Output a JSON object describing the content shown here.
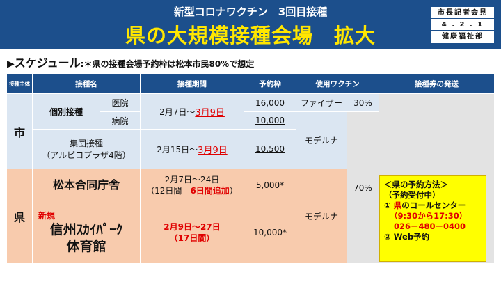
{
  "header": {
    "subtitle": "新型コロナワクチン　3回目接種",
    "title": "県の大規模接種会場　拡大",
    "press": [
      "市長記者会見",
      "4 . 2 . 1",
      "健康福祉部"
    ]
  },
  "schedule": {
    "marker": "▶",
    "heading": "スケジュール",
    "note": ":＊県の接種会場予約枠は松本市民80%で想定"
  },
  "table": {
    "headers": {
      "subject": "接種主体",
      "name": "接種名",
      "period": "接種期間",
      "slots": "予約枠",
      "vaccine": "使用ワクチン",
      "tickets": "接種券の発送"
    },
    "city": {
      "label": "市",
      "individual": "個別接種",
      "clinic": "医院",
      "hospital": "病院",
      "individual_period_a": "2月7日～",
      "individual_period_b": "3月9日",
      "clinic_slots": "16,000",
      "hospital_slots": "10,000",
      "pfizer": "ファイザー",
      "pfizer_pct": "30%",
      "group_1": "集団接種",
      "group_2": "（アルピコプラザ4階）",
      "group_period_a": "2月15日～",
      "group_period_b": "3月9日",
      "group_slots": "10,500",
      "moderna": "モデルナ"
    },
    "pref": {
      "label": "県",
      "site1_name": "松本合同庁舎",
      "site1_period_1": "2月7日～24日",
      "site1_period_2a": "（12日間",
      "site1_period_2b": "6日間追加",
      "site1_period_2c": "）",
      "site1_slots": "5,000*",
      "moderna_pct": "70%",
      "site2_new": "新規",
      "site2_name_1": "信州ｽｶｲﾊﾟｰｸ",
      "site2_name_2": "体育館",
      "site2_period_1": "2月9日～27日",
      "site2_period_2": "（17日間）",
      "site2_slots": "10,000*",
      "moderna": "モデルナ"
    },
    "reservation": {
      "line1": "＜県の予約方法＞",
      "line2": "（予約受付中）",
      "line3a": "① ",
      "line3b": "県",
      "line3c": "のコールセンター",
      "line4": "（9:30から17:30）",
      "line5": "026－480－0400",
      "line6": "② Web予約"
    }
  },
  "colors": {
    "header_bg": "#1c4f8c",
    "title_yellow": "#ffe600",
    "city_bg": "#dbe6f2",
    "pref_bg": "#f8cbad",
    "accent_red": "#e00000",
    "info_yellow": "#ffff00"
  }
}
